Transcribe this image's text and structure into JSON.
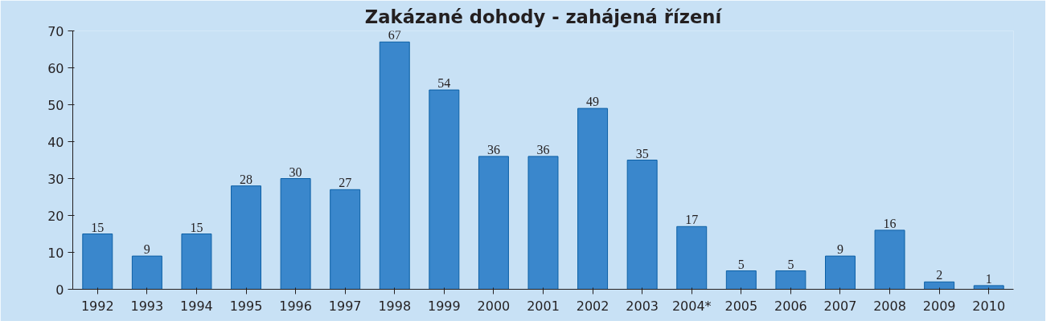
{
  "chart_data": {
    "type": "bar",
    "title": "Zakázané dohody - zahájená řízení",
    "categories": [
      "1992",
      "1993",
      "1994",
      "1995",
      "1996",
      "1997",
      "1998",
      "1999",
      "2000",
      "2001",
      "2002",
      "2003",
      "2004*",
      "2005",
      "2006",
      "2007",
      "2008",
      "2009",
      "2010"
    ],
    "values": [
      15,
      9,
      15,
      28,
      30,
      27,
      67,
      54,
      36,
      36,
      49,
      35,
      17,
      5,
      5,
      9,
      16,
      2,
      1
    ],
    "color": "#3a87cc",
    "ylim": [
      0,
      70
    ],
    "yticks": [
      0,
      10,
      20,
      30,
      40,
      50,
      60,
      70
    ],
    "grid": false,
    "data_labels": true
  }
}
